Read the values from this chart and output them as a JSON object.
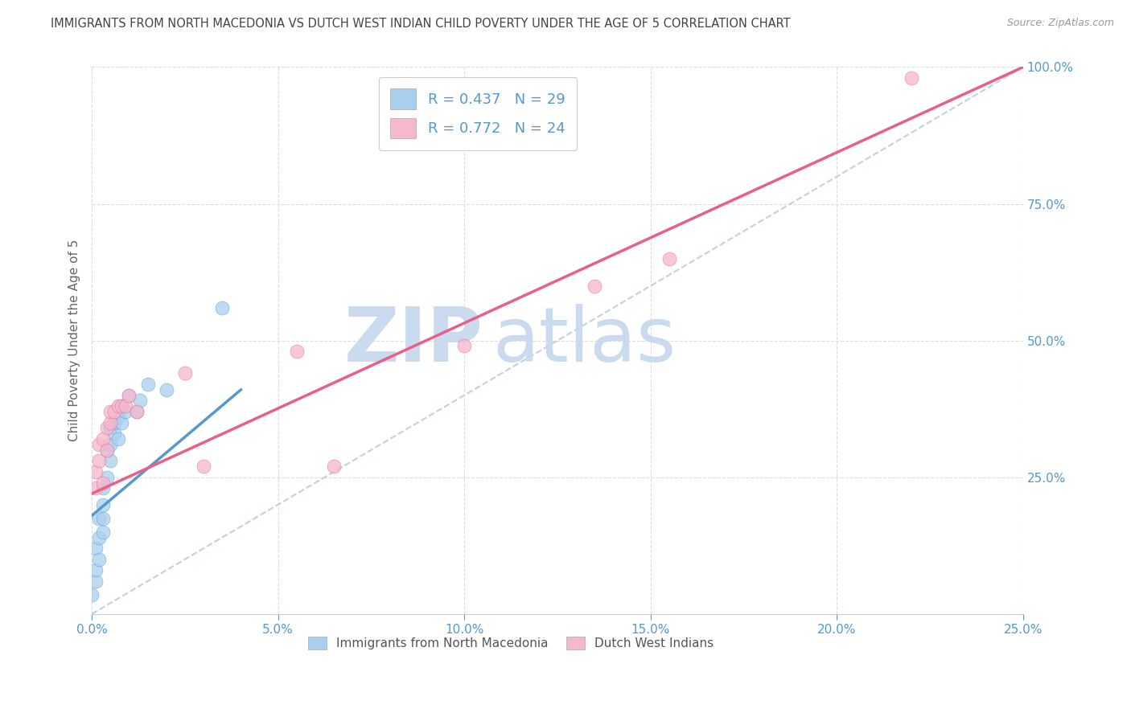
{
  "title": "IMMIGRANTS FROM NORTH MACEDONIA VS DUTCH WEST INDIAN CHILD POVERTY UNDER THE AGE OF 5 CORRELATION CHART",
  "source": "Source: ZipAtlas.com",
  "ylabel": "Child Poverty Under the Age of 5",
  "watermark_zip": "ZIP",
  "watermark_atlas": "atlas",
  "legend1_label": "Immigrants from North Macedonia",
  "legend2_label": "Dutch West Indians",
  "R1": 0.437,
  "N1": 29,
  "R2": 0.772,
  "N2": 24,
  "color1": "#aacfee",
  "color2": "#f5b8cc",
  "line1_color": "#5599cc",
  "line2_color": "#e8608a",
  "ref_line_color": "#bbccdd",
  "xlim": [
    0,
    0.25
  ],
  "ylim": [
    0,
    1.0
  ],
  "xticks": [
    0,
    0.05,
    0.1,
    0.15,
    0.2,
    0.25
  ],
  "yticks": [
    0.25,
    0.5,
    0.75,
    1.0
  ],
  "blue_scatter_x": [
    0.0,
    0.001,
    0.001,
    0.001,
    0.002,
    0.002,
    0.002,
    0.003,
    0.003,
    0.003,
    0.003,
    0.004,
    0.004,
    0.005,
    0.005,
    0.005,
    0.006,
    0.006,
    0.007,
    0.007,
    0.008,
    0.008,
    0.009,
    0.01,
    0.012,
    0.013,
    0.015,
    0.02,
    0.035
  ],
  "blue_scatter_y": [
    0.035,
    0.06,
    0.08,
    0.12,
    0.1,
    0.14,
    0.175,
    0.15,
    0.175,
    0.2,
    0.23,
    0.25,
    0.3,
    0.28,
    0.31,
    0.34,
    0.33,
    0.35,
    0.32,
    0.36,
    0.35,
    0.38,
    0.37,
    0.4,
    0.37,
    0.39,
    0.42,
    0.41,
    0.56
  ],
  "pink_scatter_x": [
    0.001,
    0.001,
    0.002,
    0.002,
    0.003,
    0.003,
    0.004,
    0.004,
    0.005,
    0.005,
    0.006,
    0.007,
    0.008,
    0.009,
    0.01,
    0.012,
    0.025,
    0.03,
    0.055,
    0.065,
    0.1,
    0.135,
    0.155,
    0.22
  ],
  "pink_scatter_y": [
    0.23,
    0.26,
    0.28,
    0.31,
    0.24,
    0.32,
    0.3,
    0.34,
    0.35,
    0.37,
    0.37,
    0.38,
    0.38,
    0.38,
    0.4,
    0.37,
    0.44,
    0.27,
    0.48,
    0.27,
    0.49,
    0.6,
    0.65,
    0.98
  ],
  "blue_line_x0": 0.0,
  "blue_line_y0": 0.18,
  "blue_line_x1": 0.04,
  "blue_line_y1": 0.41,
  "pink_line_x0": 0.0,
  "pink_line_y0": 0.22,
  "pink_line_x1": 0.25,
  "pink_line_y1": 1.0,
  "diag_line_x0": 0.0,
  "diag_line_y0": 0.0,
  "diag_line_x1": 0.25,
  "diag_line_y1": 1.0,
  "grid_color": "#dddddd",
  "bg_color": "#ffffff",
  "title_color": "#444444",
  "axis_label_color": "#666666",
  "tick_label_color": "#5599cc",
  "watermark_color_zip": "#c5d8ee",
  "watermark_color_atlas": "#c5d8ee"
}
